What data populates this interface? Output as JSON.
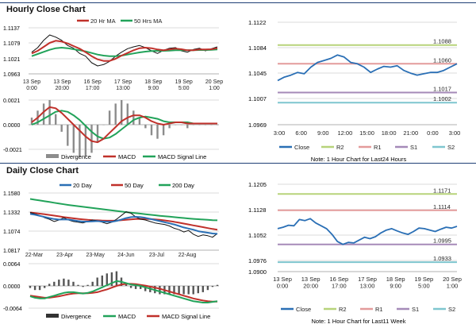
{
  "sections": {
    "hourly_title": "Hourly Close Chart",
    "daily_title": "Daily Close Chart"
  },
  "colors": {
    "ma20": "#c0312b",
    "ma50": "#22a35a",
    "price": "#111111",
    "close_blue": "#2a6fb5",
    "r2": "#b7d37a",
    "r1": "#e39b9b",
    "s1": "#a58ab8",
    "s2": "#7fc6cf",
    "divergence": "#8c8c8c",
    "grid": "#cfcfcf",
    "section_bar": "#1f3f76"
  },
  "chart_data": [
    {
      "id": "hourly_price",
      "type": "line",
      "legend": [
        "20 Hr MA",
        "50 Hrs MA"
      ],
      "y_ticks": [
        "1.1137",
        "1.1079",
        "1.1021",
        "1.0963"
      ],
      "ylim": [
        1.0963,
        1.1137
      ],
      "x_labels": [
        "13 Sep\n0:00",
        "13 Sep\n20:00",
        "16 Sep\n17:00",
        "17 Sep\n13:00",
        "18 Sep\n9:00",
        "19 Sep\n5:00",
        "20 Sep\n1:00"
      ],
      "price": [
        1.1045,
        1.1062,
        1.109,
        1.111,
        1.1102,
        1.109,
        1.107,
        1.106,
        1.104,
        1.103,
        1.1005,
        1.0993,
        1.0998,
        1.101,
        1.103,
        1.1045,
        1.1058,
        1.1065,
        1.107,
        1.1062,
        1.105,
        1.104,
        1.1052,
        1.106,
        1.1062,
        1.105,
        1.1045,
        1.1055,
        1.106,
        1.105,
        1.1058,
        1.1065
      ],
      "ma20": [
        1.104,
        1.105,
        1.1065,
        1.108,
        1.1088,
        1.1085,
        1.1078,
        1.1068,
        1.1058,
        1.1045,
        1.103,
        1.1018,
        1.1012,
        1.1012,
        1.102,
        1.1032,
        1.1042,
        1.1052,
        1.106,
        1.1062,
        1.106,
        1.1055,
        1.1052,
        1.1055,
        1.1058,
        1.1056,
        1.1052,
        1.1052,
        1.1055,
        1.1055,
        1.1056,
        1.106
      ],
      "ma50": [
        1.103,
        1.1038,
        1.1046,
        1.1054,
        1.106,
        1.1062,
        1.106,
        1.1056,
        1.1052,
        1.1048,
        1.1042,
        1.1036,
        1.1032,
        1.103,
        1.103,
        1.1032,
        1.1036,
        1.104,
        1.1044,
        1.1047,
        1.1049,
        1.105,
        1.105,
        1.1051,
        1.1052,
        1.1052,
        1.1052,
        1.1052,
        1.1053,
        1.1053,
        1.1054,
        1.1055
      ]
    },
    {
      "id": "hourly_macd",
      "type": "line",
      "legend": [
        "Divergence",
        "MACD",
        "MACD Signal Line"
      ],
      "y_ticks": [
        "0.0021",
        "0.0000",
        "-0.0021"
      ],
      "ylim": [
        -0.0021,
        0.0021
      ],
      "macd": [
        0.0002,
        0.0006,
        0.0011,
        0.0015,
        0.0014,
        0.001,
        0.0005,
        0.0,
        -0.0005,
        -0.001,
        -0.0014,
        -0.0015,
        -0.0012,
        -0.0007,
        -0.0002,
        0.0003,
        0.0006,
        0.0008,
        0.0008,
        0.0006,
        0.0003,
        0.0001,
        0.0,
        0.0001,
        0.0002,
        0.0002,
        0.0001,
        0.0001,
        0.0001,
        0.0001,
        0.0001,
        0.0001
      ],
      "signal": [
        0.0,
        0.0002,
        0.0005,
        0.0008,
        0.0011,
        0.0012,
        0.0011,
        0.0008,
        0.0004,
        -0.0001,
        -0.0006,
        -0.001,
        -0.0012,
        -0.0011,
        -0.0008,
        -0.0004,
        0.0,
        0.0004,
        0.0006,
        0.0007,
        0.0006,
        0.0005,
        0.0003,
        0.0002,
        0.0002,
        0.0002,
        0.0002,
        0.0001,
        0.0001,
        0.0001,
        0.0001,
        0.0001
      ]
    },
    {
      "id": "hourly_levels",
      "type": "line",
      "y_ticks": [
        "1.1122",
        "1.1084",
        "1.1045",
        "1.1007",
        "1.0969"
      ],
      "ylim": [
        1.0969,
        1.1122
      ],
      "x_labels": [
        "3:00",
        "6:00",
        "9:00",
        "12:00",
        "15:00",
        "18:00",
        "21:00",
        "0:00",
        "3:00"
      ],
      "close": [
        1.1035,
        1.104,
        1.1043,
        1.1047,
        1.1045,
        1.1055,
        1.1062,
        1.1065,
        1.1068,
        1.1073,
        1.107,
        1.1062,
        1.106,
        1.1055,
        1.1047,
        1.1052,
        1.1056,
        1.1055,
        1.1057,
        1.105,
        1.1046,
        1.1043,
        1.1045,
        1.1047,
        1.1047,
        1.105,
        1.1055,
        1.106
      ],
      "levels": {
        "R2": 1.1088,
        "R1": 1.106,
        "S1": 1.1017,
        "S2": 1.1002
      },
      "level_labels": [
        "1.1088",
        "1.1060",
        "1.1017",
        "1.1002"
      ],
      "legend": [
        "Close",
        "R2",
        "R1",
        "S1",
        "S2"
      ],
      "note": "Note: 1 Hour Chart for Last24 Hours"
    },
    {
      "id": "daily_price",
      "type": "line",
      "legend": [
        "20 Day",
        "50 Day",
        "200 Day"
      ],
      "y_ticks": [
        "1.1580",
        "1.1332",
        "1.1074",
        "1.0817"
      ],
      "ylim": [
        1.0817,
        1.158
      ],
      "x_labels": [
        "22-Mar",
        "23-Apr",
        "23-May",
        "24-Jun",
        "23-Jul",
        "22-Aug"
      ],
      "price": [
        1.132,
        1.13,
        1.128,
        1.125,
        1.123,
        1.12,
        1.122,
        1.125,
        1.122,
        1.12,
        1.119,
        1.118,
        1.12,
        1.122,
        1.121,
        1.119,
        1.117,
        1.119,
        1.123,
        1.128,
        1.133,
        1.131,
        1.126,
        1.123,
        1.122,
        1.12,
        1.118,
        1.117,
        1.116,
        1.114,
        1.111,
        1.109,
        1.106,
        1.108,
        1.103,
        1.1,
        1.102,
        1.101,
        1.099,
        1.104
      ],
      "ma20": [
        1.13,
        1.129,
        1.1275,
        1.126,
        1.1245,
        1.1232,
        1.1225,
        1.1228,
        1.1225,
        1.1215,
        1.1205,
        1.1198,
        1.1198,
        1.1202,
        1.1205,
        1.12,
        1.1195,
        1.1195,
        1.1208,
        1.1225,
        1.1245,
        1.1258,
        1.1262,
        1.1258,
        1.1248,
        1.1235,
        1.122,
        1.1205,
        1.119,
        1.1175,
        1.116,
        1.114,
        1.112,
        1.1105,
        1.109,
        1.107,
        1.106,
        1.105,
        1.104,
        1.1035
      ],
      "ma50": [
        1.132,
        1.1312,
        1.1304,
        1.1296,
        1.1288,
        1.1278,
        1.1268,
        1.1258,
        1.125,
        1.1242,
        1.1235,
        1.1228,
        1.1222,
        1.1218,
        1.1215,
        1.1212,
        1.121,
        1.121,
        1.1212,
        1.1216,
        1.1222,
        1.1228,
        1.1232,
        1.1234,
        1.1234,
        1.1232,
        1.1228,
        1.1222,
        1.1214,
        1.1205,
        1.1195,
        1.1184,
        1.1172,
        1.116,
        1.1148,
        1.1136,
        1.1124,
        1.1112,
        1.11,
        1.109
      ],
      "ma200": [
        1.15,
        1.149,
        1.148,
        1.147,
        1.146,
        1.145,
        1.144,
        1.143,
        1.142,
        1.1412,
        1.1404,
        1.1396,
        1.1388,
        1.138,
        1.1372,
        1.1364,
        1.1356,
        1.1348,
        1.134,
        1.1332,
        1.1325,
        1.1318,
        1.1311,
        1.1304,
        1.1297,
        1.129,
        1.1283,
        1.1276,
        1.127,
        1.1264,
        1.1258,
        1.1252,
        1.1246,
        1.124,
        1.1235,
        1.123,
        1.1226,
        1.1222,
        1.1218,
        1.1215
      ]
    },
    {
      "id": "daily_macd",
      "type": "line",
      "legend": [
        "Divergence",
        "MACD",
        "MACD Signal Line"
      ],
      "y_ticks": [
        "0.0064",
        "0.0000",
        "-0.0064"
      ],
      "ylim": [
        -0.0064,
        0.0064
      ],
      "macd": [
        -0.003,
        -0.0034,
        -0.0036,
        -0.0036,
        -0.0032,
        -0.0028,
        -0.0024,
        -0.002,
        -0.0018,
        -0.0018,
        -0.002,
        -0.0022,
        -0.002,
        -0.0016,
        -0.001,
        -0.0004,
        0.0002,
        0.0008,
        0.0014,
        0.0012,
        0.0008,
        0.0004,
        0.0002,
        0.0,
        -0.0004,
        -0.0008,
        -0.0012,
        -0.0016,
        -0.002,
        -0.0024,
        -0.0028,
        -0.0032,
        -0.0036,
        -0.004,
        -0.0044,
        -0.0046,
        -0.0048,
        -0.0048,
        -0.0046,
        -0.0044
      ],
      "signal": [
        -0.0028,
        -0.003,
        -0.0032,
        -0.0034,
        -0.0034,
        -0.0032,
        -0.003,
        -0.0027,
        -0.0024,
        -0.0022,
        -0.0021,
        -0.0021,
        -0.0021,
        -0.002,
        -0.0018,
        -0.0014,
        -0.001,
        -0.0005,
        0.0,
        0.0004,
        0.0006,
        0.0006,
        0.0005,
        0.0003,
        0.0001,
        -0.0002,
        -0.0005,
        -0.0008,
        -0.0012,
        -0.0016,
        -0.002,
        -0.0024,
        -0.0028,
        -0.0032,
        -0.0036,
        -0.0039,
        -0.0042,
        -0.0044,
        -0.0045,
        -0.0045
      ]
    },
    {
      "id": "daily_levels",
      "type": "line",
      "y_ticks": [
        "1.1205",
        "1.1128",
        "1.1052",
        "1.0976",
        "1.0900"
      ],
      "ylim": [
        1.09,
        1.1205
      ],
      "x_labels": [
        "13 Sep\n0:00",
        "13 Sep\n20:00",
        "16 Sep\n17:00",
        "17 Sep\n13:00",
        "18 Sep\n9:00",
        "19 Sep\n5:00",
        "20 Sep\n1:00"
      ],
      "close": [
        1.105,
        1.1055,
        1.1062,
        1.106,
        1.1082,
        1.1078,
        1.1085,
        1.107,
        1.106,
        1.105,
        1.103,
        1.1005,
        1.0995,
        1.1002,
        1.1,
        1.101,
        1.102,
        1.1015,
        1.1022,
        1.1035,
        1.1045,
        1.105,
        1.1042,
        1.1035,
        1.103,
        1.104,
        1.1052,
        1.105,
        1.1045,
        1.104,
        1.1048,
        1.1055,
        1.1052,
        1.1058
      ],
      "levels": {
        "R2": 1.1171,
        "R1": 1.1114,
        "S1": 1.0995,
        "S2": 1.0933
      },
      "level_labels": [
        "1.1171",
        "1.1114",
        "1.0995",
        "1.0933"
      ],
      "legend": [
        "Close",
        "R2",
        "R1",
        "S1",
        "S2"
      ],
      "note": "Note: 1 Hour Chart for Last11 Week"
    }
  ]
}
